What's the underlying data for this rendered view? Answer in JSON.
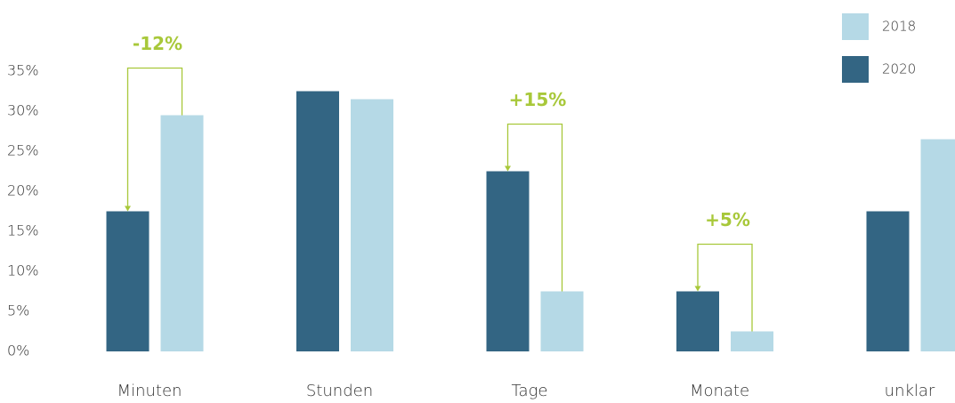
{
  "chart_data": {
    "type": "bar",
    "categories": [
      "Minuten",
      "Stunden",
      "Tage",
      "Monate",
      "unklar"
    ],
    "series": [
      {
        "name": "2018",
        "color": "#b5d9e6",
        "values": [
          29.5,
          31.5,
          7.5,
          2.5,
          26.5
        ]
      },
      {
        "name": "2020",
        "color": "#336583",
        "values": [
          17.5,
          32.5,
          22.5,
          7.5,
          17.5
        ]
      }
    ],
    "ylim": [
      0,
      35
    ],
    "yticks": [
      {
        "value": 0,
        "label": "0%"
      },
      {
        "value": 5,
        "label": "5%"
      },
      {
        "value": 10,
        "label": "10%"
      },
      {
        "value": 15,
        "label": "15%"
      },
      {
        "value": 20,
        "label": "20%"
      },
      {
        "value": 25,
        "label": "25%"
      },
      {
        "value": 30,
        "label": "30%"
      },
      {
        "value": 35,
        "label": "35%"
      }
    ],
    "grid": false,
    "legend": "top-right",
    "annotations": [
      {
        "text": "-12%",
        "category": "Minuten",
        "color": "#a8c83a"
      },
      {
        "text": "+15%",
        "category": "Tage",
        "color": "#a8c83a"
      },
      {
        "text": "+5%",
        "category": "Monate",
        "color": "#a8c83a"
      }
    ]
  }
}
